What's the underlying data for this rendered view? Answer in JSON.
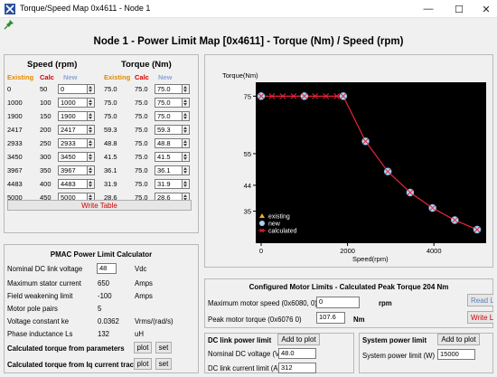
{
  "window": {
    "title": "Torque/Speed Map 0x4611 - Node 1",
    "minimize": "—",
    "maximize": "☐",
    "close": "✕"
  },
  "page_title": "Node 1 - Power Limit Map [0x4611] - Torque (Nm) / Speed (rpm)",
  "table": {
    "speed_header": "Speed (rpm)",
    "torque_header": "Torque (Nm)",
    "col_existing": "Existing",
    "col_calc": "Calc",
    "col_new": "New",
    "rows": [
      {
        "speed_existing": "0",
        "speed_calc": "50",
        "speed_new": "0",
        "torque_existing": "75.0",
        "torque_calc": "75.0",
        "torque_new": "75.0"
      },
      {
        "speed_existing": "1000",
        "speed_calc": "100",
        "speed_new": "1000",
        "torque_existing": "75.0",
        "torque_calc": "75.0",
        "torque_new": "75.0"
      },
      {
        "speed_existing": "1900",
        "speed_calc": "150",
        "speed_new": "1900",
        "torque_existing": "75.0",
        "torque_calc": "75.0",
        "torque_new": "75.0"
      },
      {
        "speed_existing": "2417",
        "speed_calc": "200",
        "speed_new": "2417",
        "torque_existing": "59.3",
        "torque_calc": "75.0",
        "torque_new": "59.3"
      },
      {
        "speed_existing": "2933",
        "speed_calc": "250",
        "speed_new": "2933",
        "torque_existing": "48.8",
        "torque_calc": "75.0",
        "torque_new": "48.8"
      },
      {
        "speed_existing": "3450",
        "speed_calc": "300",
        "speed_new": "3450",
        "torque_existing": "41.5",
        "torque_calc": "75.0",
        "torque_new": "41.5"
      },
      {
        "speed_existing": "3967",
        "speed_calc": "350",
        "speed_new": "3967",
        "torque_existing": "36.1",
        "torque_calc": "75.0",
        "torque_new": "36.1"
      },
      {
        "speed_existing": "4483",
        "speed_calc": "400",
        "speed_new": "4483",
        "torque_existing": "31.9",
        "torque_calc": "75.0",
        "torque_new": "31.9"
      },
      {
        "speed_existing": "5000",
        "speed_calc": "450",
        "speed_new": "5000",
        "torque_existing": "28.6",
        "torque_calc": "75.0",
        "torque_new": "28.6"
      }
    ],
    "write_button": "Write Table"
  },
  "calculator": {
    "title": "PMAC Power Limit Calculator",
    "rows": [
      {
        "label": "Nominal DC link voltage",
        "value": "48",
        "unit": "Vdc",
        "editable": true
      },
      {
        "label": "Maximum stator current",
        "value": "650",
        "unit": "Amps",
        "editable": false
      },
      {
        "label": "Field weakening limit",
        "value": "-100",
        "unit": "Amps",
        "editable": false
      },
      {
        "label": "Motor pole pairs",
        "value": "5",
        "unit": "",
        "editable": false
      },
      {
        "label": "Voltage constant ke",
        "value": "0.0362",
        "unit": "Vrms/(rad/s)",
        "editable": false
      },
      {
        "label": "Phase inductance Ls",
        "value": "132",
        "unit": "uH",
        "editable": false
      }
    ],
    "action_rows": [
      {
        "label": "Calculated torque from parameters",
        "plot": "plot",
        "set": "set"
      },
      {
        "label": "Calculated torque from Iq current trace",
        "plot": "plot",
        "set": "set"
      }
    ]
  },
  "chart_data": {
    "type": "line",
    "ylabel": "Torque(Nm)",
    "xlabel": "Speed(rpm)",
    "xlim": [
      0,
      5000
    ],
    "ylim": [
      27,
      77
    ],
    "x_ticks": [
      "0",
      "2000",
      "4000"
    ],
    "y_ticks": [
      "75",
      "55",
      "44",
      "35"
    ],
    "x_tick_values": [
      0,
      2000,
      4000
    ],
    "y_tick_values": [
      75,
      55,
      44,
      35
    ],
    "legend": [
      "existing",
      "new",
      "calculated"
    ],
    "legend_position": "bottom-left",
    "series": [
      {
        "name": "existing",
        "color": "#f5a623",
        "x": [
          0,
          1000,
          1900,
          2417,
          2933,
          3450,
          3967,
          4483,
          5000
        ],
        "y": [
          75.0,
          75.0,
          75.0,
          59.3,
          48.8,
          41.5,
          36.1,
          31.9,
          28.6
        ]
      },
      {
        "name": "new",
        "color": "#a8d4f0",
        "x": [
          0,
          1000,
          1900,
          2417,
          2933,
          3450,
          3967,
          4483,
          5000
        ],
        "y": [
          75.0,
          75.0,
          75.0,
          59.3,
          48.8,
          41.5,
          36.1,
          31.9,
          28.6
        ]
      },
      {
        "name": "calculated",
        "color": "#e8233a",
        "x": [
          0,
          250,
          500,
          750,
          1000,
          1250,
          1500,
          1750,
          1900,
          2417,
          2933,
          3450,
          3967,
          4483,
          5000
        ],
        "y": [
          75,
          75,
          75,
          75,
          75,
          75,
          75,
          75,
          75,
          59.3,
          48.8,
          41.5,
          36.1,
          31.9,
          28.6
        ]
      }
    ]
  },
  "motor_limits": {
    "title": "Configured Motor Limits - Calculated Peak Torque 204 Nm",
    "speed_label": "Maximum motor speed (0x6080, 0)",
    "speed_value": "0",
    "speed_unit": "rpm",
    "torque_label": "Peak motor torque (0x6076 0)",
    "torque_value": "107.6",
    "torque_unit": "Nm",
    "read_button": "Read Limits",
    "write_button": "Write Limits"
  },
  "dc_link": {
    "title": "DC link power limit",
    "add_button": "Add to plot",
    "voltage_label": "Nominal DC voltage (V)",
    "voltage_value": "48.0",
    "current_label": "DC link current limit (A)",
    "current_value": "312"
  },
  "system_power": {
    "title": "System power limit",
    "add_button": "Add to plot",
    "power_label": "System power limit (W)",
    "power_value": "15000"
  },
  "colors": {
    "existing": "#e08a00",
    "calc": "#d40000",
    "new": "#8aa6d6",
    "red_text": "#d40000"
  }
}
